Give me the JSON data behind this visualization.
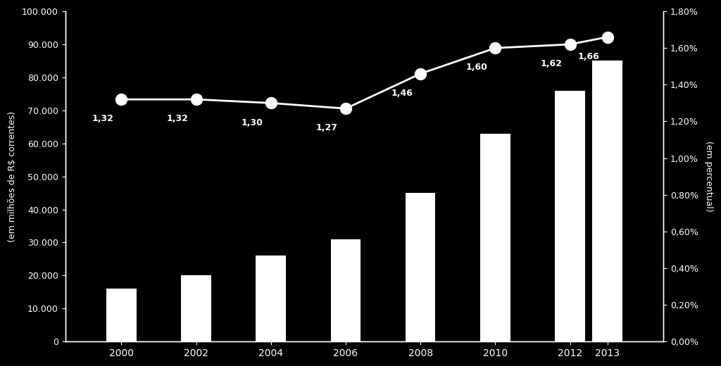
{
  "years": [
    2000,
    2002,
    2004,
    2006,
    2008,
    2010,
    2012,
    2013
  ],
  "bar_values": [
    16000,
    20000,
    26000,
    31000,
    45000,
    63000,
    76000,
    85000
  ],
  "line_values": [
    1.32,
    1.32,
    1.3,
    1.27,
    1.46,
    1.6,
    1.62,
    1.66
  ],
  "line_labels": [
    "1,32",
    "1,32",
    "1,30",
    "1,27",
    "1,46",
    "1,60",
    "1,62",
    "1,66"
  ],
  "bar_color": "#ffffff",
  "bar_edgecolor": "#ffffff",
  "line_color": "#ffffff",
  "marker_color": "#ffffff",
  "background_color": "#000000",
  "text_color": "#ffffff",
  "ylabel_left": "(em milhões de R$ correntes)",
  "ylabel_right": "(em percentual)",
  "ylim_left": [
    0,
    100000
  ],
  "ylim_right": [
    0.0,
    1.8
  ],
  "yticks_left": [
    0,
    10000,
    20000,
    30000,
    40000,
    50000,
    60000,
    70000,
    80000,
    90000,
    100000
  ],
  "yticks_right": [
    0.0,
    0.2,
    0.4,
    0.6,
    0.8,
    1.0,
    1.2,
    1.4,
    1.6,
    1.8
  ],
  "bar_width": 0.8,
  "xlim": [
    1998.5,
    2014.5
  ],
  "annotation_offsets_x": [
    -0.5,
    -0.5,
    -0.5,
    -0.5,
    -0.5,
    -0.5,
    -0.5,
    -0.5
  ],
  "annotation_offsets_y": [
    -0.12,
    -0.12,
    -0.12,
    -0.12,
    -0.12,
    -0.12,
    -0.12,
    -0.12
  ]
}
